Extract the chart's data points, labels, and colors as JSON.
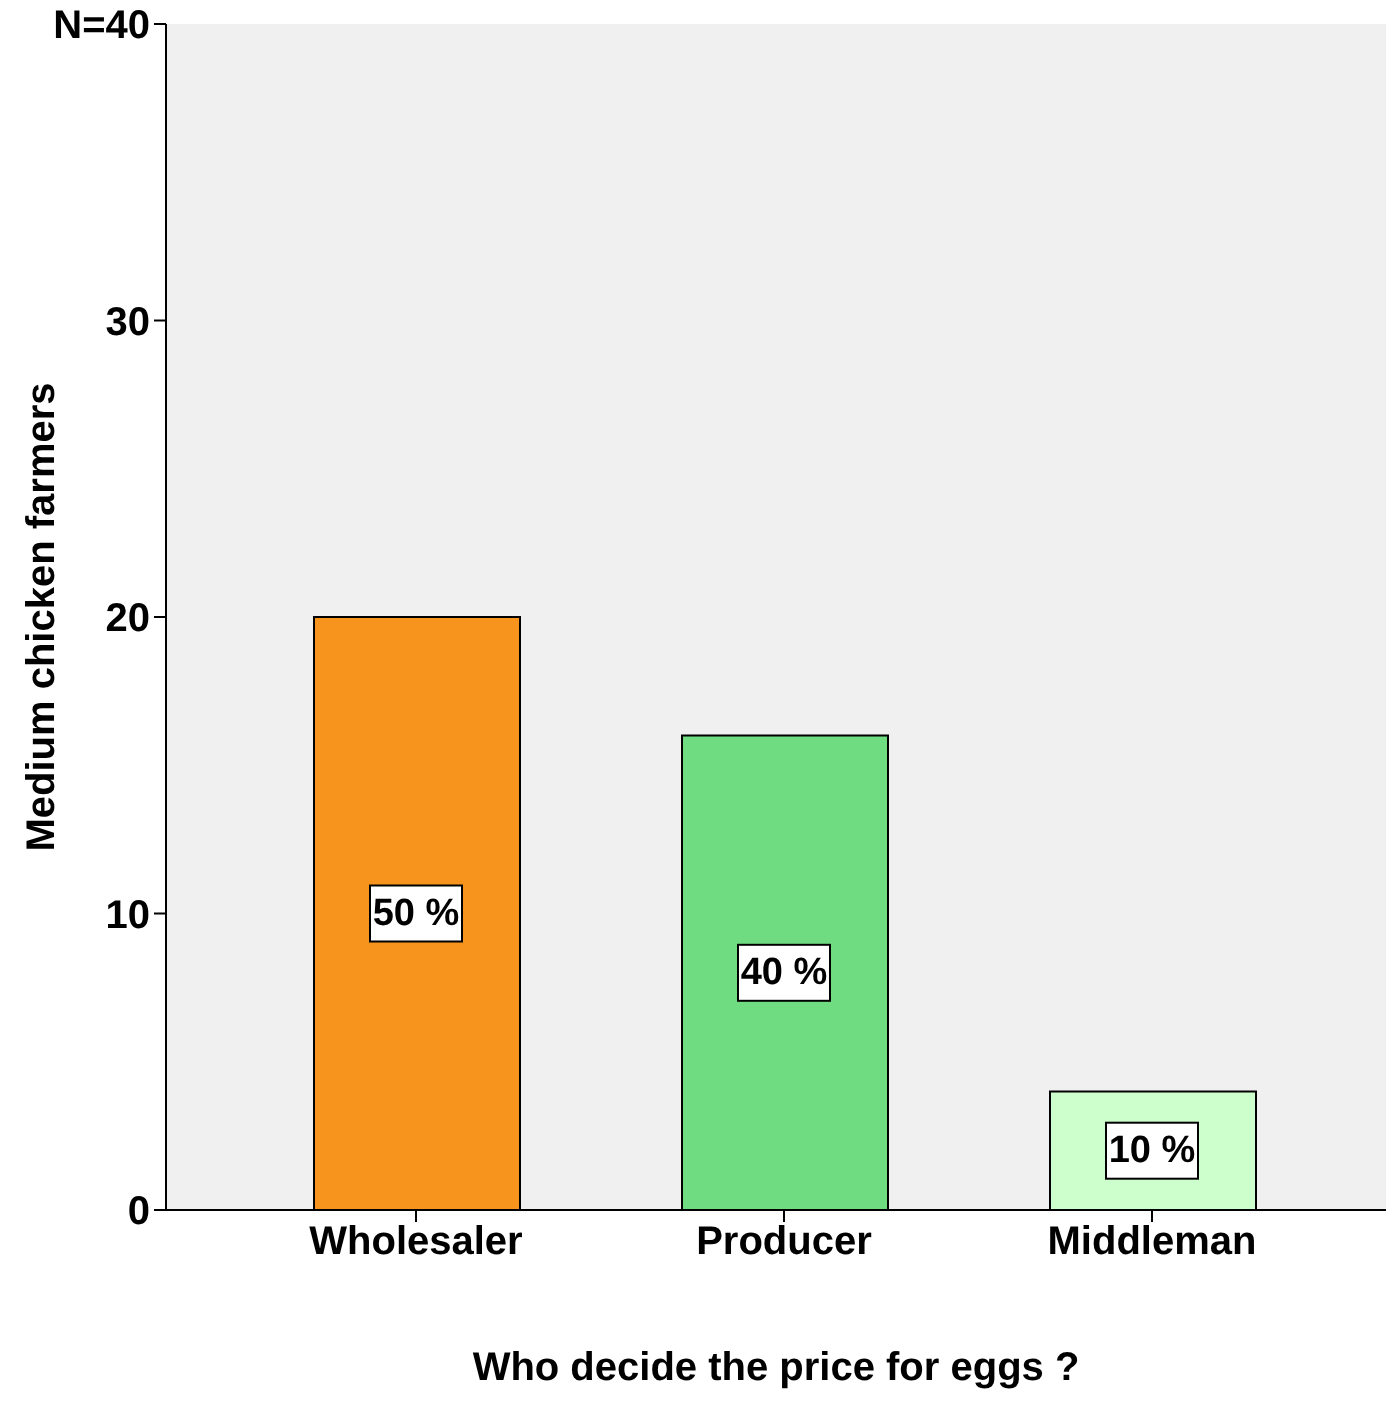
{
  "chart_data": {
    "type": "bar",
    "xlabel": "Who decide the price for eggs ?",
    "ylabel": "Medium chicken farmers",
    "categories": [
      "Wholesaler",
      "Producer",
      "Middleman"
    ],
    "values": [
      20,
      16,
      4
    ],
    "colors": [
      "#f7941d",
      "#6fdc82",
      "#ccffcc"
    ],
    "annotations": [
      "50 %",
      "40 %",
      "10 %"
    ],
    "ylim": [
      0,
      40
    ],
    "yticks": [
      0,
      10,
      20,
      30,
      {
        "value": 40,
        "label": "N=40"
      }
    ],
    "grid": false,
    "legend": false
  }
}
